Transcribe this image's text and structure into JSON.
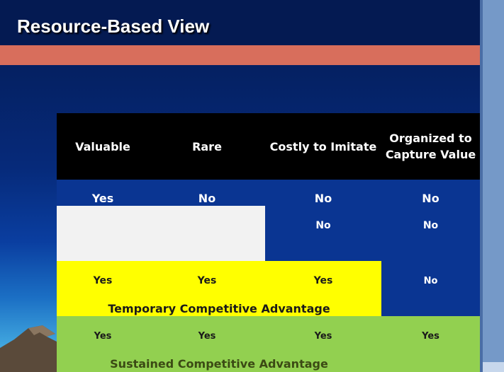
{
  "slide": {
    "title": "Resource-Based View"
  },
  "table": {
    "headers": [
      "Valuable",
      "Rare",
      "Costly to Imitate",
      "Organized to Capture Value"
    ],
    "rows": [
      {
        "cells": [
          "Yes",
          "No",
          "No",
          "No"
        ]
      },
      {
        "cells": [
          "",
          "",
          "No",
          "No"
        ]
      },
      {
        "cells": [
          "Yes",
          "Yes",
          "Yes",
          "No"
        ],
        "label": "Temporary Competitive Advantage"
      },
      {
        "cells": [
          "Yes",
          "Yes",
          "Yes",
          "Yes"
        ],
        "label": "Sustained Competitive Advantage"
      }
    ]
  },
  "colors": {
    "title_bar": "#041a52",
    "accent_stripe": "#d86e5c",
    "header_bg": "#000000",
    "row_blue": "#0a3592",
    "blank_panel": "#f2f2f2",
    "highlight_yellow": "#ffff00",
    "highlight_green": "#92d050"
  }
}
